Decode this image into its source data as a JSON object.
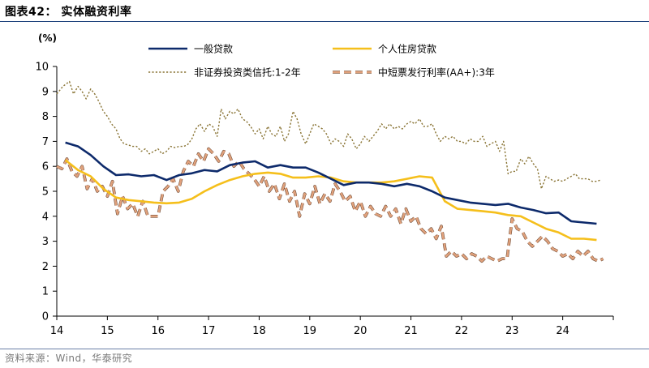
{
  "chart_data": {
    "type": "line",
    "title": "图表42： 实体融资利率",
    "ylabel": "(%)",
    "xlabel": "",
    "ylim": [
      0,
      10
    ],
    "xlim": [
      14,
      25
    ],
    "yticks": [
      "0",
      "1",
      "2",
      "3",
      "4",
      "5",
      "6",
      "7",
      "8",
      "9",
      "10"
    ],
    "xticks": [
      "14",
      "15",
      "16",
      "17",
      "18",
      "19",
      "20",
      "21",
      "22",
      "23",
      "24"
    ],
    "legend_position": "top",
    "series": [
      {
        "name": "一般贷款",
        "color": "#0d2a6b",
        "style": "solid",
        "x": [
          14.17,
          14.42,
          14.67,
          14.92,
          15.17,
          15.42,
          15.67,
          15.92,
          16.17,
          16.42,
          16.67,
          16.92,
          17.17,
          17.42,
          17.67,
          17.92,
          18.17,
          18.42,
          18.67,
          18.92,
          19.17,
          19.42,
          19.67,
          19.92,
          20.17,
          20.42,
          20.67,
          20.92,
          21.17,
          21.42,
          21.67,
          21.92,
          22.17,
          22.42,
          22.67,
          22.92,
          23.17,
          23.42,
          23.67,
          23.92,
          24.17,
          24.42,
          24.67
        ],
        "values": [
          6.95,
          6.8,
          6.45,
          6.0,
          5.65,
          5.68,
          5.6,
          5.65,
          5.45,
          5.65,
          5.72,
          5.85,
          5.8,
          6.05,
          6.15,
          6.2,
          5.95,
          6.05,
          5.95,
          5.95,
          5.75,
          5.5,
          5.25,
          5.35,
          5.35,
          5.3,
          5.2,
          5.3,
          5.2,
          5.0,
          4.75,
          4.65,
          4.55,
          4.5,
          4.45,
          4.5,
          4.35,
          4.25,
          4.12,
          4.15,
          3.8,
          3.75,
          3.7
        ]
      },
      {
        "name": "个人住房贷款",
        "color": "#f5bf1b",
        "style": "solid",
        "x": [
          14.17,
          14.42,
          14.67,
          14.92,
          15.17,
          15.42,
          15.67,
          15.92,
          16.17,
          16.42,
          16.67,
          16.92,
          17.17,
          17.42,
          17.67,
          17.92,
          18.17,
          18.42,
          18.67,
          18.92,
          19.17,
          19.42,
          19.67,
          19.92,
          20.17,
          20.42,
          20.67,
          20.92,
          21.17,
          21.42,
          21.67,
          21.92,
          22.17,
          22.42,
          22.67,
          22.92,
          23.17,
          23.42,
          23.67,
          23.92,
          24.17,
          24.42,
          24.67
        ],
        "values": [
          6.25,
          5.85,
          5.6,
          5.1,
          4.75,
          4.65,
          4.6,
          4.55,
          4.52,
          4.55,
          4.7,
          5.0,
          5.25,
          5.45,
          5.6,
          5.7,
          5.75,
          5.7,
          5.55,
          5.55,
          5.6,
          5.55,
          5.4,
          5.35,
          5.35,
          5.35,
          5.4,
          5.5,
          5.6,
          5.55,
          4.6,
          4.3,
          4.25,
          4.2,
          4.15,
          4.05,
          4.0,
          3.75,
          3.5,
          3.35,
          3.1,
          3.1,
          3.05
        ]
      },
      {
        "name": "非证券投资类信托:1-2年",
        "color": "#8a7536",
        "style": "dotted",
        "x": [
          14.0,
          14.12,
          14.25,
          14.33,
          14.42,
          14.5,
          14.58,
          14.67,
          14.75,
          14.83,
          14.92,
          15.0,
          15.08,
          15.17,
          15.25,
          15.33,
          15.42,
          15.5,
          15.58,
          15.67,
          15.75,
          15.83,
          15.92,
          16.0,
          16.08,
          16.17,
          16.25,
          16.33,
          16.42,
          16.5,
          16.58,
          16.67,
          16.75,
          16.83,
          16.92,
          17.0,
          17.08,
          17.17,
          17.25,
          17.33,
          17.42,
          17.5,
          17.58,
          17.67,
          17.75,
          17.83,
          17.92,
          18.0,
          18.08,
          18.17,
          18.25,
          18.33,
          18.42,
          18.5,
          18.58,
          18.67,
          18.75,
          18.83,
          18.92,
          19.0,
          19.08,
          19.17,
          19.25,
          19.33,
          19.42,
          19.5,
          19.58,
          19.67,
          19.75,
          19.83,
          19.92,
          20.0,
          20.08,
          20.17,
          20.25,
          20.33,
          20.42,
          20.5,
          20.58,
          20.67,
          20.75,
          20.83,
          20.92,
          21.0,
          21.08,
          21.17,
          21.25,
          21.33,
          21.42,
          21.5,
          21.58,
          21.67,
          21.75,
          21.83,
          21.92,
          22.0,
          22.08,
          22.17,
          22.25,
          22.33,
          22.42,
          22.5,
          22.58,
          22.67,
          22.75,
          22.83,
          22.92,
          23.0,
          23.08,
          23.17,
          23.25,
          23.33,
          23.42,
          23.5,
          23.58,
          23.67,
          23.75,
          23.83,
          23.92,
          24.0,
          24.08,
          24.17,
          24.25,
          24.33,
          24.42,
          24.5,
          24.58,
          24.67,
          24.75
        ],
        "values": [
          8.9,
          9.2,
          9.4,
          8.9,
          9.2,
          9.0,
          8.7,
          9.1,
          8.9,
          8.6,
          8.2,
          8.0,
          7.7,
          7.5,
          7.1,
          6.9,
          6.85,
          6.8,
          6.8,
          6.6,
          6.7,
          6.5,
          6.6,
          6.7,
          6.5,
          6.6,
          6.8,
          6.75,
          6.8,
          6.8,
          6.85,
          7.1,
          7.5,
          7.7,
          7.4,
          7.7,
          7.6,
          7.2,
          8.3,
          7.9,
          8.2,
          8.1,
          8.3,
          7.9,
          7.8,
          7.6,
          7.3,
          7.5,
          7.1,
          7.6,
          7.3,
          7.2,
          7.6,
          7.0,
          7.3,
          8.2,
          7.9,
          7.3,
          6.9,
          7.3,
          7.7,
          7.6,
          7.5,
          7.3,
          6.9,
          7.1,
          7.0,
          6.8,
          7.3,
          7.1,
          6.7,
          6.9,
          7.2,
          7.0,
          7.2,
          7.4,
          7.7,
          7.5,
          7.7,
          7.5,
          7.6,
          7.5,
          7.7,
          7.8,
          7.7,
          7.9,
          7.6,
          7.6,
          7.7,
          7.3,
          7.0,
          7.2,
          7.1,
          7.2,
          7.0,
          7.0,
          6.9,
          7.1,
          7.0,
          7.0,
          7.2,
          6.8,
          6.9,
          7.0,
          6.6,
          7.0,
          5.7,
          5.8,
          5.8,
          6.3,
          6.1,
          6.4,
          6.1,
          5.9,
          5.1,
          5.6,
          5.5,
          5.4,
          5.45,
          5.4,
          5.5,
          5.6,
          5.7,
          5.5,
          5.5,
          5.5,
          5.4,
          5.4,
          5.45
        ]
      },
      {
        "name": "中短票发行利率(AA+):3年",
        "color": "#e0a17c",
        "style": "dashed",
        "x": [
          14.0,
          14.1,
          14.2,
          14.3,
          14.4,
          14.5,
          14.6,
          14.7,
          14.8,
          14.9,
          15.0,
          15.1,
          15.2,
          15.3,
          15.4,
          15.5,
          15.6,
          15.7,
          15.8,
          15.9,
          16.0,
          16.1,
          16.2,
          16.3,
          16.4,
          16.5,
          16.6,
          16.7,
          16.8,
          16.9,
          17.0,
          17.1,
          17.2,
          17.3,
          17.4,
          17.5,
          17.6,
          17.7,
          17.8,
          17.9,
          18.0,
          18.1,
          18.2,
          18.3,
          18.4,
          18.5,
          18.6,
          18.7,
          18.8,
          18.9,
          19.0,
          19.1,
          19.2,
          19.3,
          19.4,
          19.5,
          19.6,
          19.7,
          19.8,
          19.9,
          20.0,
          20.1,
          20.2,
          20.3,
          20.4,
          20.5,
          20.6,
          20.7,
          20.8,
          20.9,
          21.0,
          21.1,
          21.2,
          21.3,
          21.4,
          21.5,
          21.6,
          21.7,
          21.8,
          21.9,
          22.0,
          22.1,
          22.2,
          22.3,
          22.4,
          22.5,
          22.6,
          22.7,
          22.8,
          22.9,
          23.0,
          23.1,
          23.2,
          23.3,
          23.4,
          23.5,
          23.6,
          23.7,
          23.8,
          23.9,
          24.0,
          24.1,
          24.2,
          24.3,
          24.4,
          24.5,
          24.6,
          24.7,
          24.8
        ],
        "values": [
          6.0,
          5.9,
          6.3,
          5.8,
          5.6,
          6.0,
          5.1,
          5.5,
          5.0,
          5.2,
          4.8,
          5.4,
          4.1,
          4.8,
          4.3,
          4.5,
          4.0,
          4.6,
          4.0,
          4.0,
          4.0,
          5.0,
          5.2,
          5.5,
          5.0,
          5.8,
          6.2,
          6.0,
          6.5,
          6.2,
          6.7,
          6.5,
          6.2,
          6.6,
          6.5,
          6.0,
          6.2,
          5.9,
          5.7,
          5.5,
          5.2,
          5.6,
          5.0,
          5.3,
          4.7,
          5.3,
          4.6,
          5.0,
          4.0,
          4.9,
          4.5,
          5.2,
          4.5,
          4.9,
          4.6,
          5.3,
          5.0,
          4.6,
          4.8,
          4.2,
          4.6,
          4.0,
          4.4,
          4.1,
          4.0,
          4.4,
          4.0,
          4.3,
          3.7,
          4.3,
          3.8,
          4.0,
          3.5,
          3.3,
          3.5,
          3.1,
          3.6,
          2.4,
          2.6,
          2.4,
          2.5,
          2.3,
          2.5,
          2.4,
          2.2,
          2.4,
          2.3,
          2.2,
          2.3,
          2.3,
          3.9,
          3.5,
          3.4,
          3.0,
          2.8,
          3.0,
          3.2,
          3.0,
          2.7,
          2.6,
          2.4,
          2.5,
          2.3,
          2.6,
          2.4,
          2.6,
          2.3,
          2.2,
          2.3
        ]
      }
    ]
  },
  "footer": {
    "source": "资料来源：Wind，华泰研究"
  }
}
